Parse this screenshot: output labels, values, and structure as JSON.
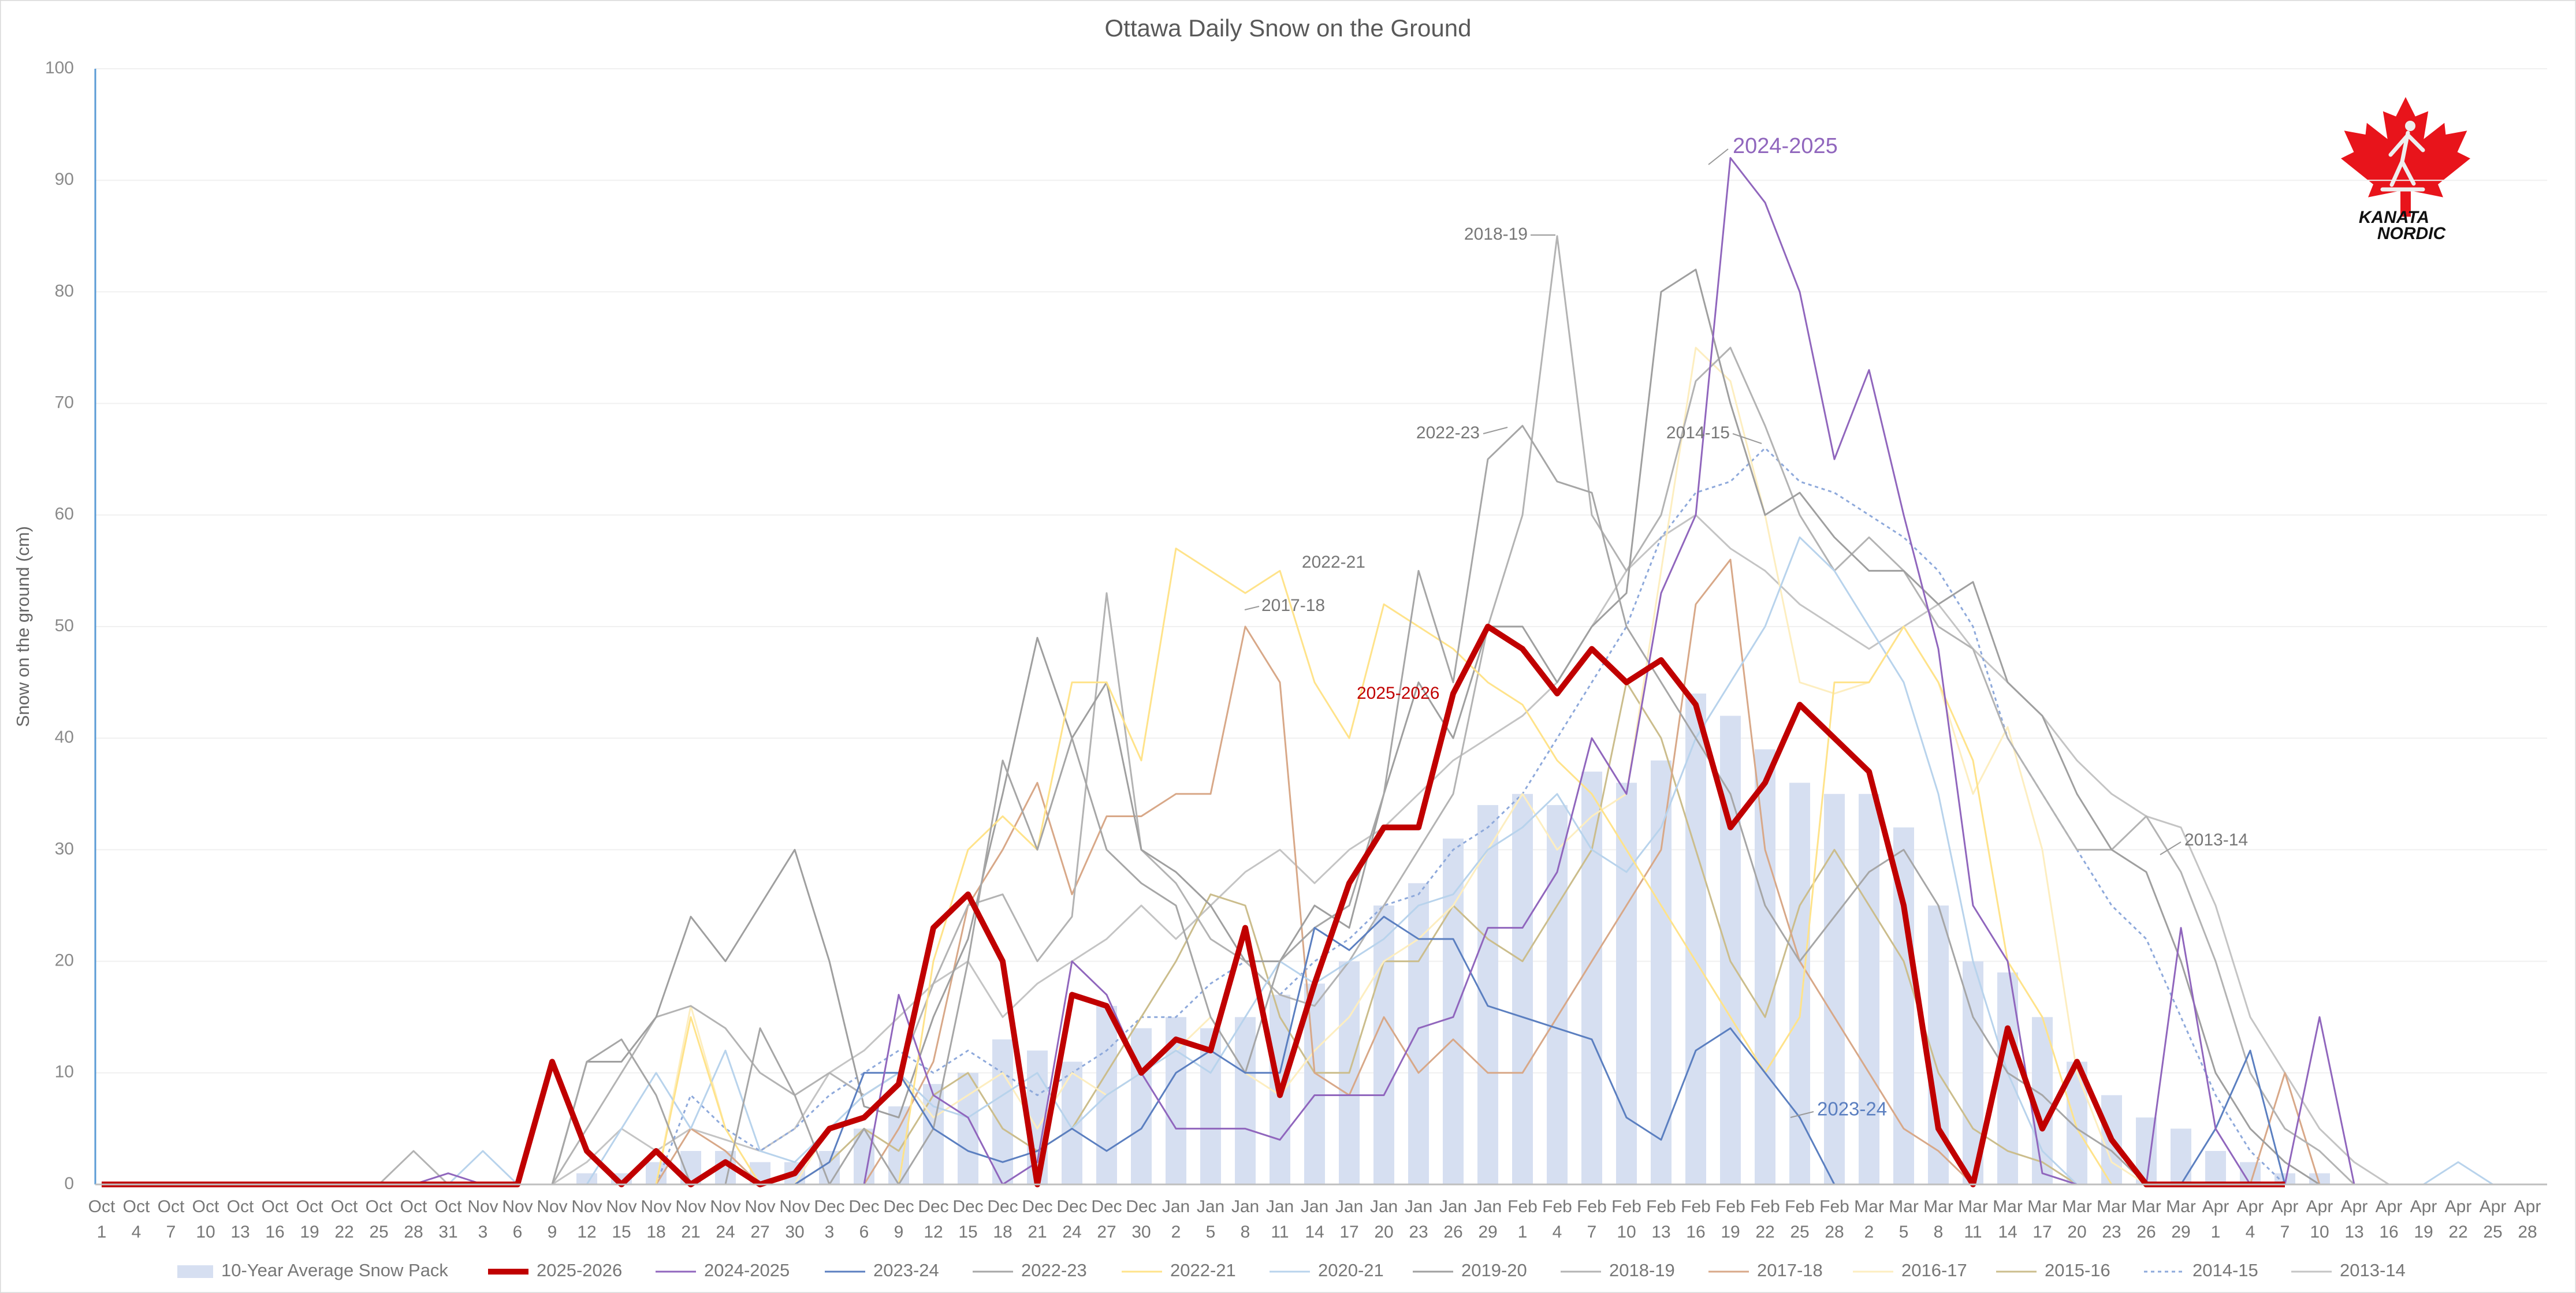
{
  "chart_data": {
    "type": "combo",
    "title": "Ottawa Daily Snow on the Ground",
    "y_label": "Snow on the ground (cm)",
    "logo_text": [
      "KANATA",
      "NORDIC"
    ],
    "categories": [
      "Oct 1",
      "Oct 4",
      "Oct 7",
      "Oct 10",
      "Oct 13",
      "Oct 16",
      "Oct 19",
      "Oct 22",
      "Oct 25",
      "Oct 28",
      "Oct 31",
      "Nov 3",
      "Nov 6",
      "Nov 9",
      "Nov 12",
      "Nov 15",
      "Nov 18",
      "Nov 21",
      "Nov 24",
      "Nov 27",
      "Nov 30",
      "Dec 3",
      "Dec 6",
      "Dec 9",
      "Dec 12",
      "Dec 15",
      "Dec 18",
      "Dec 21",
      "Dec 24",
      "Dec 27",
      "Dec 30",
      "Jan 2",
      "Jan 5",
      "Jan 8",
      "Jan 11",
      "Jan 14",
      "Jan 17",
      "Jan 20",
      "Jan 23",
      "Jan 26",
      "Jan 29",
      "Feb 1",
      "Feb 4",
      "Feb 7",
      "Feb 10",
      "Feb 13",
      "Feb 16",
      "Feb 19",
      "Feb 22",
      "Feb 25",
      "Feb 28",
      "Mar 2",
      "Mar 5",
      "Mar 8",
      "Mar 11",
      "Mar 14",
      "Mar 17",
      "Mar 20",
      "Mar 23",
      "Mar 26",
      "Mar 29",
      "Apr 1",
      "Apr 4",
      "Apr 7",
      "Apr 10",
      "Apr 13",
      "Apr 16",
      "Apr 19",
      "Apr 22",
      "Apr 25",
      "Apr 28"
    ],
    "ylim": [
      0,
      100
    ],
    "yticks": [
      0,
      10,
      20,
      30,
      40,
      50,
      60,
      70,
      80,
      90,
      100
    ],
    "grid": true,
    "legend": "bottom",
    "series": [
      {
        "name": "10-Year Average Snow Pack",
        "kind": "bar",
        "color": "#d6dff1",
        "values": [
          0,
          0,
          0,
          0,
          0,
          0,
          0,
          0,
          0,
          0,
          0,
          0,
          0,
          0,
          1,
          1,
          2,
          3,
          3,
          2,
          2,
          3,
          5,
          7,
          9,
          10,
          13,
          12,
          11,
          16,
          14,
          15,
          14,
          15,
          17,
          18,
          20,
          25,
          27,
          31,
          34,
          35,
          34,
          37,
          36,
          38,
          44,
          42,
          39,
          36,
          35,
          35,
          32,
          25,
          20,
          19,
          15,
          11,
          8,
          6,
          5,
          3,
          2,
          1,
          1,
          0,
          0,
          0,
          0,
          0,
          0
        ]
      },
      {
        "name": "2025-2026",
        "kind": "line",
        "color": "#c00000",
        "values": [
          0,
          0,
          0,
          0,
          0,
          0,
          0,
          0,
          0,
          0,
          0,
          0,
          0,
          11,
          3,
          0,
          3,
          0,
          2,
          0,
          1,
          5,
          6,
          9,
          23,
          26,
          20,
          0,
          17,
          16,
          10,
          13,
          12,
          23,
          8,
          18,
          27,
          32,
          32,
          44,
          50,
          48,
          44,
          48,
          45,
          47,
          43,
          32,
          36,
          43,
          40,
          37,
          25,
          5,
          0,
          14,
          5,
          11,
          4,
          0,
          0,
          0,
          0,
          0,
          null,
          null,
          null,
          null,
          null,
          null,
          null
        ]
      },
      {
        "name": "2024-2025",
        "kind": "line",
        "color": "#9066bd",
        "values": [
          0,
          0,
          0,
          0,
          0,
          0,
          0,
          0,
          0,
          0,
          1,
          0,
          0,
          0,
          0,
          0,
          0,
          0,
          0,
          0,
          0,
          0,
          0,
          17,
          8,
          6,
          0,
          2,
          20,
          17,
          10,
          5,
          5,
          5,
          4,
          8,
          8,
          8,
          14,
          15,
          23,
          23,
          28,
          40,
          35,
          53,
          60,
          92,
          88,
          80,
          65,
          73,
          60,
          48,
          25,
          20,
          1,
          0,
          0,
          0,
          23,
          5,
          0,
          0,
          15,
          0,
          0,
          0,
          0,
          0,
          0
        ]
      },
      {
        "name": "2023-24",
        "kind": "line",
        "color": "#5b7fc0",
        "values": [
          0,
          0,
          0,
          0,
          0,
          0,
          0,
          0,
          0,
          0,
          0,
          0,
          0,
          0,
          0,
          0,
          0,
          0,
          0,
          0,
          0,
          2,
          10,
          10,
          5,
          3,
          2,
          3,
          5,
          3,
          5,
          10,
          12,
          10,
          10,
          23,
          21,
          24,
          22,
          22,
          16,
          15,
          14,
          13,
          6,
          4,
          12,
          14,
          10,
          6,
          0,
          0,
          0,
          0,
          0,
          0,
          0,
          0,
          0,
          0,
          0,
          5,
          12,
          0,
          0,
          0,
          0,
          0,
          0,
          0,
          0
        ]
      },
      {
        "name": "2022-23",
        "kind": "line",
        "color": "#a6a6a6",
        "values": [
          0,
          0,
          0,
          0,
          0,
          0,
          0,
          0,
          0,
          0,
          0,
          0,
          0,
          0,
          11,
          13,
          8,
          0,
          0,
          14,
          8,
          0,
          5,
          0,
          5,
          20,
          38,
          30,
          40,
          30,
          27,
          25,
          15,
          10,
          20,
          23,
          25,
          35,
          55,
          45,
          65,
          68,
          63,
          62,
          50,
          45,
          40,
          35,
          25,
          20,
          24,
          28,
          30,
          25,
          15,
          10,
          8,
          5,
          3,
          0,
          0,
          0,
          0,
          0,
          0,
          0,
          0,
          0,
          0,
          0,
          0
        ]
      },
      {
        "name": "2022-21",
        "kind": "line",
        "color": "#ffe38a",
        "values": [
          0,
          0,
          0,
          0,
          0,
          0,
          0,
          0,
          0,
          0,
          0,
          0,
          0,
          0,
          0,
          0,
          0,
          15,
          5,
          0,
          0,
          0,
          0,
          0,
          20,
          30,
          33,
          30,
          45,
          45,
          38,
          57,
          55,
          53,
          55,
          45,
          40,
          52,
          50,
          48,
          45,
          43,
          38,
          35,
          30,
          25,
          20,
          15,
          10,
          15,
          45,
          45,
          50,
          45,
          38,
          20,
          15,
          5,
          0,
          0,
          0,
          0,
          0,
          0,
          0,
          0,
          0,
          0,
          0,
          0,
          0
        ]
      },
      {
        "name": "2020-21",
        "kind": "line",
        "color": "#b8d3ec",
        "values": [
          0,
          0,
          0,
          0,
          0,
          0,
          0,
          0,
          0,
          0,
          0,
          3,
          0,
          0,
          0,
          5,
          10,
          5,
          12,
          3,
          2,
          5,
          8,
          10,
          7,
          6,
          8,
          10,
          5,
          8,
          10,
          12,
          10,
          15,
          20,
          18,
          20,
          22,
          25,
          26,
          30,
          32,
          35,
          30,
          28,
          32,
          40,
          45,
          50,
          58,
          55,
          50,
          45,
          35,
          20,
          10,
          3,
          0,
          0,
          0,
          0,
          0,
          0,
          0,
          0,
          0,
          0,
          0,
          2,
          0,
          0
        ]
      },
      {
        "name": "2019-20",
        "kind": "line",
        "color": "#9f9f9f",
        "values": [
          0,
          0,
          0,
          0,
          0,
          0,
          0,
          0,
          0,
          0,
          0,
          0,
          0,
          0,
          11,
          11,
          15,
          24,
          20,
          25,
          30,
          20,
          7,
          6,
          15,
          22,
          35,
          49,
          40,
          45,
          30,
          28,
          25,
          20,
          20,
          25,
          23,
          35,
          45,
          40,
          50,
          50,
          45,
          50,
          53,
          80,
          82,
          70,
          60,
          62,
          58,
          55,
          55,
          52,
          54,
          45,
          42,
          35,
          30,
          28,
          20,
          10,
          5,
          2,
          0,
          0,
          0,
          0,
          0,
          0,
          0
        ]
      },
      {
        "name": "2018-19",
        "kind": "line",
        "color": "#b3b3b3",
        "values": [
          0,
          0,
          0,
          0,
          0,
          0,
          0,
          0,
          0,
          3,
          0,
          0,
          0,
          0,
          5,
          10,
          15,
          16,
          14,
          10,
          8,
          10,
          8,
          10,
          18,
          25,
          26,
          20,
          24,
          53,
          30,
          27,
          22,
          20,
          17,
          16,
          20,
          25,
          30,
          35,
          50,
          60,
          85,
          60,
          55,
          60,
          72,
          75,
          68,
          60,
          55,
          58,
          55,
          50,
          48,
          40,
          35,
          30,
          30,
          33,
          28,
          20,
          10,
          5,
          3,
          0,
          0,
          0,
          0,
          0,
          0
        ]
      },
      {
        "name": "2017-18",
        "kind": "line",
        "color": "#d8a888",
        "values": [
          0,
          0,
          0,
          0,
          0,
          0,
          0,
          0,
          0,
          0,
          0,
          0,
          0,
          0,
          0,
          0,
          0,
          5,
          3,
          0,
          0,
          0,
          0,
          5,
          11,
          25,
          30,
          36,
          26,
          33,
          33,
          35,
          35,
          50,
          45,
          10,
          8,
          15,
          10,
          13,
          10,
          10,
          15,
          20,
          25,
          30,
          52,
          56,
          30,
          20,
          15,
          10,
          5,
          3,
          0,
          0,
          0,
          0,
          0,
          0,
          0,
          0,
          0,
          10,
          0,
          0,
          0,
          0,
          0,
          0,
          0
        ]
      },
      {
        "name": "2016-17",
        "kind": "line",
        "color": "#fdeec0",
        "values": [
          0,
          0,
          0,
          0,
          0,
          0,
          0,
          0,
          0,
          0,
          0,
          0,
          0,
          0,
          0,
          0,
          0,
          16,
          5,
          0,
          0,
          5,
          8,
          10,
          6,
          8,
          10,
          5,
          10,
          8,
          10,
          12,
          15,
          10,
          8,
          12,
          15,
          20,
          22,
          25,
          30,
          35,
          30,
          33,
          35,
          55,
          75,
          72,
          60,
          45,
          44,
          45,
          50,
          45,
          35,
          41,
          30,
          10,
          2,
          0,
          0,
          0,
          0,
          0,
          0,
          0,
          0,
          0,
          0,
          0,
          0
        ]
      },
      {
        "name": "2015-16",
        "kind": "line",
        "color": "#cbbd8c",
        "values": [
          0,
          0,
          0,
          0,
          0,
          0,
          0,
          0,
          0,
          0,
          0,
          0,
          0,
          0,
          0,
          0,
          0,
          0,
          0,
          0,
          0,
          2,
          5,
          3,
          8,
          10,
          5,
          3,
          5,
          10,
          15,
          20,
          26,
          25,
          15,
          10,
          10,
          20,
          20,
          25,
          22,
          20,
          25,
          30,
          45,
          40,
          30,
          20,
          15,
          25,
          30,
          25,
          20,
          10,
          5,
          3,
          2,
          0,
          0,
          0,
          0,
          0,
          0,
          0,
          0,
          0,
          0,
          0,
          0,
          0,
          0
        ]
      },
      {
        "name": "2014-15",
        "kind": "line",
        "dashed": true,
        "color": "#8ea9db",
        "values": [
          0,
          0,
          0,
          0,
          0,
          0,
          0,
          0,
          0,
          0,
          0,
          0,
          0,
          0,
          0,
          0,
          0,
          8,
          5,
          3,
          5,
          8,
          10,
          12,
          10,
          12,
          10,
          8,
          10,
          12,
          15,
          15,
          18,
          20,
          17,
          20,
          22,
          25,
          26,
          30,
          32,
          35,
          40,
          45,
          50,
          58,
          62,
          63,
          66,
          63,
          62,
          60,
          58,
          55,
          50,
          40,
          35,
          30,
          25,
          22,
          15,
          8,
          3,
          0,
          0,
          0,
          0,
          0,
          0,
          0,
          0
        ]
      },
      {
        "name": "2013-14",
        "kind": "line",
        "color": "#c4c4c4",
        "values": [
          0,
          0,
          0,
          0,
          0,
          0,
          0,
          0,
          0,
          0,
          0,
          0,
          0,
          0,
          2,
          5,
          3,
          5,
          4,
          3,
          5,
          10,
          12,
          15,
          18,
          20,
          15,
          18,
          20,
          22,
          25,
          22,
          25,
          28,
          30,
          27,
          30,
          32,
          35,
          38,
          40,
          42,
          45,
          50,
          55,
          58,
          60,
          57,
          55,
          52,
          50,
          48,
          50,
          52,
          48,
          45,
          42,
          38,
          35,
          33,
          32,
          25,
          15,
          10,
          5,
          2,
          0,
          0,
          0,
          0,
          0
        ]
      }
    ],
    "annotations": [
      "2024-2025",
      "2018-19",
      "2022-23",
      "2014-15",
      "2022-21",
      "2017-18",
      "2025-2026",
      "2023-24",
      "2013-14"
    ]
  }
}
